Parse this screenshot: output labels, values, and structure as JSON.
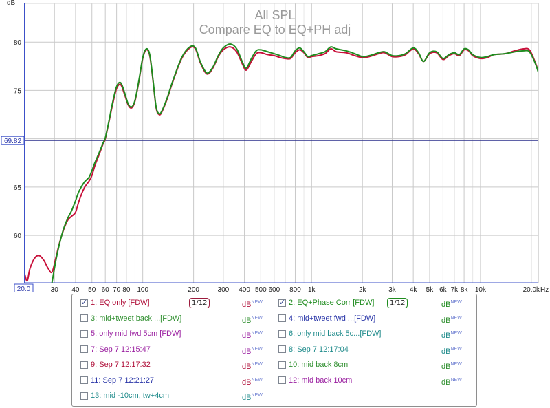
{
  "chart_data": {
    "type": "line",
    "title": "All SPL",
    "subtitle": "Compare EQ to EQ+PH adj",
    "ylabel": "dB",
    "xunit": "Hz",
    "xscale": "log",
    "xlim": [
      20,
      22000
    ],
    "ylim": [
      55.1,
      84
    ],
    "yticks": [
      60,
      65,
      70,
      75,
      80
    ],
    "xticks": [
      30,
      40,
      50,
      60,
      70,
      80,
      100,
      200,
      300,
      400,
      500,
      600,
      800,
      1000,
      2000,
      3000,
      4000,
      5000,
      6000,
      7000,
      8000,
      10000,
      20000
    ],
    "xtick_labels": [
      "30",
      "40",
      "50",
      "60",
      "70",
      "80",
      "100",
      "200",
      "300",
      "400",
      "500",
      "600",
      "800",
      "1k",
      "2k",
      "3k",
      "4k",
      "5k",
      "6k",
      "7k",
      "8k",
      "10k",
      "20.0k"
    ],
    "x_min_label": "20.0",
    "cursor_y": 69.82,
    "cursor_label": "69.82",
    "grid": true,
    "series": [
      {
        "name": "1: EQ only [FDW]",
        "color": "#c8103a",
        "points": [
          [
            20,
            56.0
          ],
          [
            20.7,
            55.3
          ],
          [
            21.5,
            56.6
          ],
          [
            23,
            57.7
          ],
          [
            24.5,
            57.9
          ],
          [
            26,
            57.4
          ],
          [
            27.5,
            56.6
          ],
          [
            29,
            56.2
          ],
          [
            30.5,
            57.6
          ],
          [
            32,
            59.1
          ],
          [
            34,
            60.6
          ],
          [
            36,
            61.6
          ],
          [
            38,
            62.0
          ],
          [
            40,
            62.4
          ],
          [
            42,
            63.6
          ],
          [
            45,
            64.9
          ],
          [
            48,
            65.6
          ],
          [
            50,
            66.2
          ],
          [
            52,
            67.2
          ],
          [
            55,
            68.3
          ],
          [
            58,
            69.4
          ],
          [
            60,
            70.0
          ],
          [
            63,
            71.7
          ],
          [
            66,
            73.4
          ],
          [
            70,
            75.2
          ],
          [
            74,
            75.6
          ],
          [
            78,
            74.6
          ],
          [
            82,
            73.5
          ],
          [
            86,
            73.2
          ],
          [
            90,
            73.9
          ],
          [
            95,
            76.0
          ],
          [
            100,
            78.3
          ],
          [
            105,
            79.2
          ],
          [
            110,
            78.6
          ],
          [
            115,
            76.0
          ],
          [
            120,
            73.2
          ],
          [
            125,
            72.5
          ],
          [
            130,
            72.8
          ],
          [
            140,
            74.2
          ],
          [
            150,
            75.8
          ],
          [
            170,
            78.3
          ],
          [
            190,
            79.4
          ],
          [
            205,
            79.3
          ],
          [
            220,
            77.8
          ],
          [
            240,
            76.7
          ],
          [
            260,
            77.3
          ],
          [
            280,
            78.5
          ],
          [
            300,
            79.2
          ],
          [
            330,
            79.5
          ],
          [
            360,
            79.0
          ],
          [
            390,
            77.7
          ],
          [
            410,
            77.1
          ],
          [
            440,
            78.0
          ],
          [
            470,
            78.8
          ],
          [
            500,
            78.9
          ],
          [
            550,
            78.7
          ],
          [
            600,
            78.6
          ],
          [
            650,
            78.4
          ],
          [
            700,
            78.3
          ],
          [
            750,
            78.3
          ],
          [
            800,
            78.9
          ],
          [
            850,
            79.2
          ],
          [
            900,
            78.9
          ],
          [
            950,
            78.4
          ],
          [
            1000,
            78.5
          ],
          [
            1100,
            78.6
          ],
          [
            1200,
            78.8
          ],
          [
            1300,
            79.3
          ],
          [
            1400,
            79.0
          ],
          [
            1600,
            78.9
          ],
          [
            1800,
            78.6
          ],
          [
            2000,
            78.4
          ],
          [
            2200,
            78.5
          ],
          [
            2500,
            78.8
          ],
          [
            2700,
            78.9
          ],
          [
            3000,
            78.5
          ],
          [
            3300,
            78.5
          ],
          [
            3600,
            78.7
          ],
          [
            4000,
            79.3
          ],
          [
            4300,
            78.8
          ],
          [
            4600,
            78.0
          ],
          [
            5000,
            78.8
          ],
          [
            5500,
            78.9
          ],
          [
            6000,
            78.2
          ],
          [
            6500,
            78.6
          ],
          [
            7000,
            78.8
          ],
          [
            7500,
            78.6
          ],
          [
            8000,
            79.2
          ],
          [
            8500,
            79.1
          ],
          [
            9000,
            78.6
          ],
          [
            10000,
            78.3
          ],
          [
            11000,
            78.4
          ],
          [
            12000,
            78.7
          ],
          [
            14000,
            78.8
          ],
          [
            16000,
            79.1
          ],
          [
            18000,
            79.3
          ],
          [
            19500,
            79.2
          ],
          [
            21000,
            78.0
          ],
          [
            22000,
            77.0
          ]
        ]
      },
      {
        "name": "2: EQ+Phase Corr [FDW]",
        "color": "#1f8c1f",
        "points": [
          [
            29,
            55.1
          ],
          [
            30.5,
            57.3
          ],
          [
            32,
            59.0
          ],
          [
            34,
            60.7
          ],
          [
            36,
            61.8
          ],
          [
            38,
            62.6
          ],
          [
            40,
            63.6
          ],
          [
            42,
            64.6
          ],
          [
            45,
            65.5
          ],
          [
            48,
            66.0
          ],
          [
            50,
            66.7
          ],
          [
            52,
            67.5
          ],
          [
            55,
            68.5
          ],
          [
            58,
            69.5
          ],
          [
            60,
            70.1
          ],
          [
            63,
            71.8
          ],
          [
            66,
            73.6
          ],
          [
            70,
            75.4
          ],
          [
            74,
            75.8
          ],
          [
            78,
            74.8
          ],
          [
            82,
            73.6
          ],
          [
            86,
            73.3
          ],
          [
            90,
            74.0
          ],
          [
            95,
            76.1
          ],
          [
            100,
            78.4
          ],
          [
            105,
            79.3
          ],
          [
            110,
            78.7
          ],
          [
            115,
            76.1
          ],
          [
            120,
            73.3
          ],
          [
            125,
            72.6
          ],
          [
            130,
            72.9
          ],
          [
            140,
            74.3
          ],
          [
            150,
            75.9
          ],
          [
            170,
            78.4
          ],
          [
            190,
            79.5
          ],
          [
            205,
            79.4
          ],
          [
            220,
            77.9
          ],
          [
            240,
            76.8
          ],
          [
            260,
            77.4
          ],
          [
            280,
            78.6
          ],
          [
            300,
            79.4
          ],
          [
            330,
            79.8
          ],
          [
            360,
            79.3
          ],
          [
            390,
            77.9
          ],
          [
            410,
            77.3
          ],
          [
            440,
            78.3
          ],
          [
            470,
            79.1
          ],
          [
            500,
            79.2
          ],
          [
            550,
            79.0
          ],
          [
            600,
            78.8
          ],
          [
            650,
            78.6
          ],
          [
            700,
            78.4
          ],
          [
            750,
            78.4
          ],
          [
            800,
            79.1
          ],
          [
            850,
            79.4
          ],
          [
            900,
            79.0
          ],
          [
            950,
            78.5
          ],
          [
            1000,
            78.6
          ],
          [
            1100,
            78.8
          ],
          [
            1200,
            79.0
          ],
          [
            1300,
            79.5
          ],
          [
            1400,
            79.3
          ],
          [
            1600,
            79.1
          ],
          [
            1800,
            78.8
          ],
          [
            2000,
            78.5
          ],
          [
            2200,
            78.6
          ],
          [
            2500,
            78.9
          ],
          [
            2700,
            79.0
          ],
          [
            3000,
            78.6
          ],
          [
            3300,
            78.6
          ],
          [
            3600,
            78.8
          ],
          [
            4000,
            79.4
          ],
          [
            4300,
            78.9
          ],
          [
            4600,
            78.0
          ],
          [
            5000,
            78.9
          ],
          [
            5500,
            79.0
          ],
          [
            6000,
            78.3
          ],
          [
            6500,
            78.7
          ],
          [
            7000,
            78.9
          ],
          [
            7500,
            78.7
          ],
          [
            8000,
            79.3
          ],
          [
            8500,
            79.2
          ],
          [
            9000,
            78.7
          ],
          [
            10000,
            78.4
          ],
          [
            11000,
            78.5
          ],
          [
            12000,
            78.7
          ],
          [
            14000,
            78.8
          ],
          [
            16000,
            79.0
          ],
          [
            18000,
            79.1
          ],
          [
            19500,
            79.0
          ],
          [
            21000,
            77.9
          ],
          [
            22000,
            76.9
          ]
        ]
      }
    ]
  },
  "legend": {
    "items": [
      {
        "label": "1: EQ only [FDW]",
        "checked": true,
        "color": "#b0103a",
        "unit_color": "#b0103a",
        "smoothing": "1/12",
        "smooth_color": "#9c1b3d"
      },
      {
        "label": "2: EQ+Phase Corr [FDW]",
        "checked": true,
        "color": "#1f8c1f",
        "unit_color": "#1f8c1f",
        "smoothing": "1/12",
        "smooth_color": "#1f8c1f"
      },
      {
        "label": "3: mid+tweet back ...[FDW]",
        "checked": false,
        "color": "#2f8f2f",
        "unit_color": "#2f8f2f"
      },
      {
        "label": "4: mid+tweet fwd ...[FDW]",
        "checked": false,
        "color": "#2a36a8",
        "unit_color": "#2f8f2f"
      },
      {
        "label": "5: only mid fwd 5cm [FDW]",
        "checked": false,
        "color": "#9a1fa0",
        "unit_color": "#9a1fa0"
      },
      {
        "label": "6: only mid back 5c...[FDW]",
        "checked": false,
        "color": "#1f8b8b",
        "unit_color": "#1f8b8b"
      },
      {
        "label": "7: Sep 7 12:15:47",
        "checked": false,
        "color": "#9a1fa0",
        "unit_color": "#9a1fa0"
      },
      {
        "label": "8: Sep 7 12:17:04",
        "checked": false,
        "color": "#1f8b8b",
        "unit_color": "#1f8b8b"
      },
      {
        "label": "9: Sep 7 12:17:32",
        "checked": false,
        "color": "#b0103a",
        "unit_color": "#b0103a"
      },
      {
        "label": "10: mid back 8cm",
        "checked": false,
        "color": "#2f8f2f",
        "unit_color": "#2f8f2f"
      },
      {
        "label": "11: Sep 7 12:21:27",
        "checked": false,
        "color": "#2a36a8",
        "unit_color": "#b0103a"
      },
      {
        "label": "12: mid back 10cm",
        "checked": false,
        "color": "#9a1fa0",
        "unit_color": "#2f8f2f"
      },
      {
        "label": "13: mid -10cm, tw+4cm",
        "checked": false,
        "color": "#1f8b8b",
        "unit_color": "#1f8b8b"
      }
    ],
    "unit_label": "dB",
    "unit_sup": "NEW"
  }
}
